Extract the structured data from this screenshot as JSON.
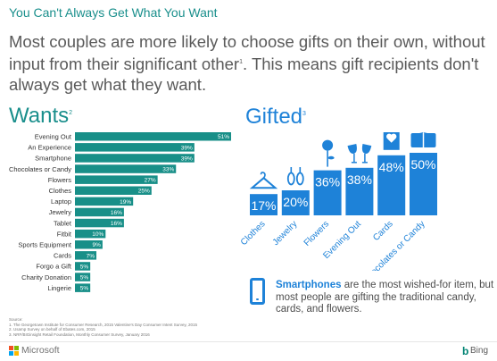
{
  "header": {
    "title": "You Can't Always Get What You Want",
    "headline": "Most couples are more likely to choose gifts on their own, without input from their significant other",
    "headline_sup": "1",
    "headline_rest": ". This means gift recipients don't always get what they want."
  },
  "wants": {
    "title": "Wants",
    "sup": "2"
  },
  "gifted": {
    "title": "Gifted",
    "sup": "3"
  },
  "chart_data": [
    {
      "type": "bar",
      "orientation": "horizontal",
      "title": "Wants",
      "categories": [
        "Evening Out",
        "An Experience",
        "Smartphone",
        "Chocolates or Candy",
        "Flowers",
        "Clothes",
        "Laptop",
        "Jewelry",
        "Tablet",
        "Fitbit",
        "Sports Equipment",
        "Cards",
        "Forgo a Gift",
        "Charity Donation",
        "Lingerie"
      ],
      "values": [
        51,
        39,
        39,
        33,
        27,
        25,
        19,
        16,
        16,
        10,
        9,
        7,
        5,
        5,
        5
      ],
      "labels": [
        "51%",
        "39%",
        "39%",
        "33%",
        "27%",
        "25%",
        "19%",
        "16%",
        "16%",
        "10%",
        "9%",
        "7%",
        "5%",
        "5%",
        "5%"
      ],
      "xlim": [
        0,
        51
      ],
      "color": "#188f88"
    },
    {
      "type": "bar",
      "orientation": "vertical",
      "title": "Gifted",
      "categories": [
        "Clothes",
        "Jewelry",
        "Flowers",
        "Evening Out",
        "Cards",
        "Chocolates or Candy"
      ],
      "values": [
        17,
        20,
        36,
        38,
        48,
        50
      ],
      "labels": [
        "17%",
        "20%",
        "36%",
        "38%",
        "48%",
        "50%"
      ],
      "icons": [
        "hanger-icon",
        "earrings-icon",
        "rose-icon",
        "wine-glasses-icon",
        "card-icon",
        "candy-box-icon"
      ],
      "ylim": [
        0,
        50
      ],
      "color": "#1e82d8"
    }
  ],
  "callout": {
    "icon": "smartphone-icon",
    "bold": "Smartphones",
    "text": " are the most wished-for item, but most people are gifting the traditional candy, cards, and flowers."
  },
  "sources": {
    "label": "Source:",
    "items": [
      "1. The Georgetown Institute for Consumer Research, 2015 Valentine's Day Consumer Intent Survey, 2015",
      "2. Usamp Survey on behalf of Ebates.com, 2015",
      "3. NRF/BIGinsight Retail Foundation, Monthly Consumer Survey, January 2016"
    ]
  },
  "footer": {
    "brand_left": "Microsoft",
    "brand_right": "Bing",
    "logo_colors": [
      "#f25022",
      "#7fba00",
      "#00a4ef",
      "#ffb900"
    ]
  }
}
